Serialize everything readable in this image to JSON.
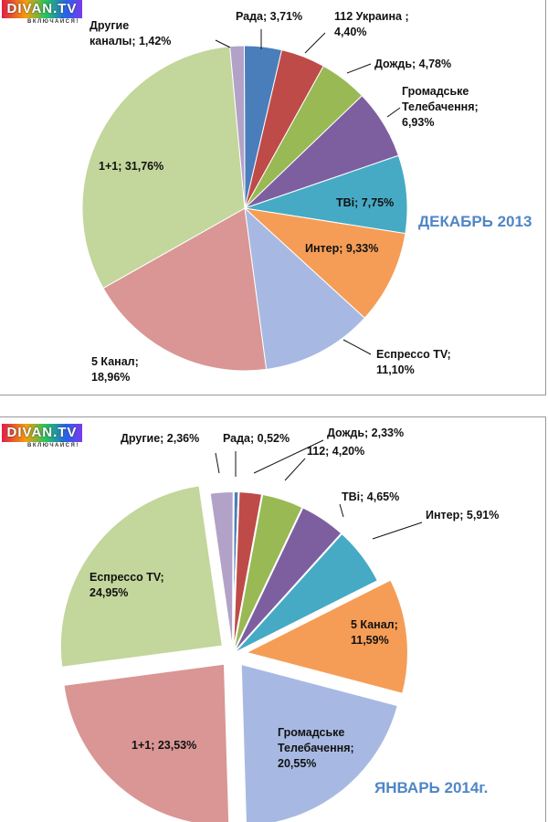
{
  "logo": {
    "word": "DIVAN.TV",
    "tagline": "ВКЛЮЧАЙСЯ!"
  },
  "chart_data": [
    {
      "type": "pie",
      "title": "ДЕКАБРЬ 2013",
      "slices": [
        {
          "name": "Рада",
          "value": 3.71,
          "label": [
            "Рада; 3,71%"
          ],
          "color": "#4a7ebb"
        },
        {
          "name": "112 Украина",
          "value": 4.4,
          "label": [
            "112 Украина ;",
            "4,40%"
          ],
          "color": "#be4b48"
        },
        {
          "name": "Дождь",
          "value": 4.78,
          "label": [
            "Дождь; 4,78%"
          ],
          "color": "#98b954"
        },
        {
          "name": "Громадське Телебачення",
          "value": 6.93,
          "label": [
            "Громадське",
            "Телебачення;",
            "6,93%"
          ],
          "color": "#7d5fa0"
        },
        {
          "name": "ТВі",
          "value": 7.75,
          "label": [
            "ТВі; 7,75%"
          ],
          "color": "#46aac5"
        },
        {
          "name": "Интер",
          "value": 9.33,
          "label": [
            "Интер; 9,33%"
          ],
          "color": "#f59d56"
        },
        {
          "name": "Еспрессо TV",
          "value": 11.1,
          "label": [
            "Еспрессо TV;",
            "11,10%"
          ],
          "color": "#a7b9e3"
        },
        {
          "name": "5 Канал",
          "value": 18.96,
          "label": [
            "5 Канал;",
            "18,96%"
          ],
          "color": "#d99694"
        },
        {
          "name": "1+1",
          "value": 31.76,
          "label": [
            "1+1; 31,76%"
          ],
          "color": "#c3d69b"
        },
        {
          "name": "Другие каналы",
          "value": 1.42,
          "label": [
            "Другие",
            "каналы; 1,42%"
          ],
          "color": "#b3a2c7"
        }
      ]
    },
    {
      "type": "pie",
      "title": "ЯНВАРЬ 2014г.",
      "slices": [
        {
          "name": "Рада",
          "value": 0.52,
          "label": [
            "Рада; 0,52%"
          ],
          "color": "#4a7ebb"
        },
        {
          "name": "Дождь",
          "value": 2.33,
          "label": [
            "Дождь; 2,33%"
          ],
          "color": "#be4b48"
        },
        {
          "name": "112",
          "value": 4.2,
          "label": [
            "112; 4,20%"
          ],
          "color": "#98b954"
        },
        {
          "name": "ТВі",
          "value": 4.65,
          "label": [
            "ТВі; 4,65%"
          ],
          "color": "#7d5fa0"
        },
        {
          "name": "Интер",
          "value": 5.91,
          "label": [
            "Интер; 5,91%"
          ],
          "color": "#46aac5"
        },
        {
          "name": "5 Канал",
          "value": 11.59,
          "label": [
            "5 Канал;",
            "11,59%"
          ],
          "color": "#f59d56"
        },
        {
          "name": "Громадське Телебачення",
          "value": 20.55,
          "label": [
            "Громадське",
            "Телебачення;",
            "20,55%"
          ],
          "color": "#a7b9e3"
        },
        {
          "name": "1+1",
          "value": 23.53,
          "label": [
            "1+1; 23,53%"
          ],
          "color": "#d99694"
        },
        {
          "name": "Еспрессо TV",
          "value": 24.95,
          "label": [
            "Еспрессо TV;",
            "24,95%"
          ],
          "color": "#c3d69b"
        },
        {
          "name": "Другие",
          "value": 2.36,
          "label": [
            "Другие; 2,36%"
          ],
          "color": "#b3a2c7"
        }
      ]
    }
  ]
}
